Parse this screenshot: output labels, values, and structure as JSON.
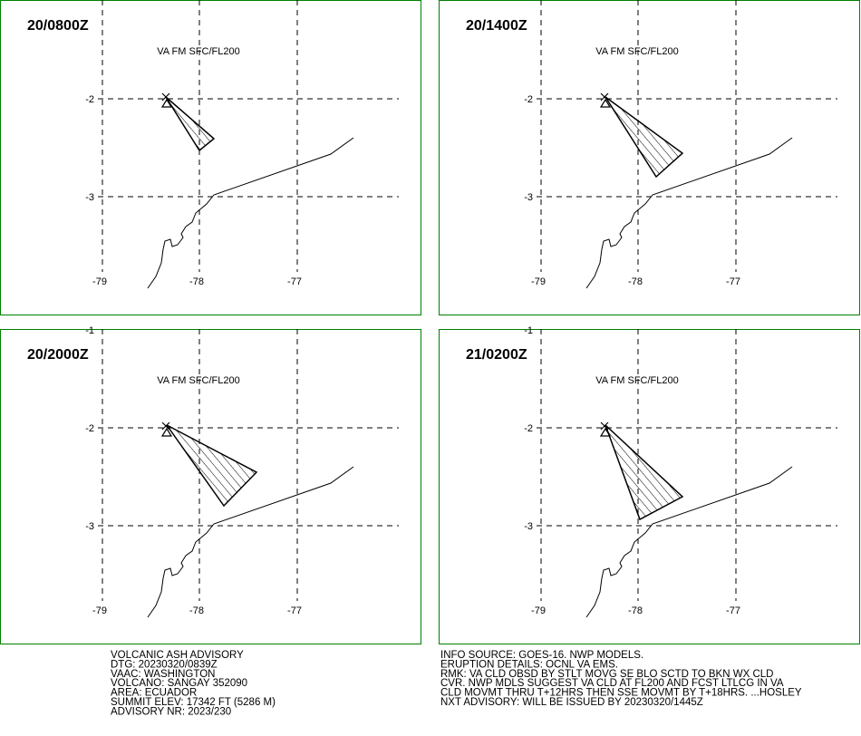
{
  "panels": [
    {
      "time": "20/0800Z",
      "level": "VA FM SFC/FL200",
      "lat_labels": [
        "-2",
        "-3"
      ],
      "lon_labels": [
        "-79",
        "-78",
        "-77"
      ]
    },
    {
      "time": "20/1400Z",
      "level": "VA FM SFC/FL200",
      "lat_labels": [
        "-2",
        "-3"
      ],
      "lon_labels": [
        "-79",
        "-78",
        "-77"
      ]
    },
    {
      "time": "20/2000Z",
      "level": "VA FM SFC/FL200",
      "lat_labels": [
        "-1",
        "-2",
        "-3"
      ],
      "lon_labels": [
        "-79",
        "-78",
        "-77"
      ]
    },
    {
      "time": "21/0200Z",
      "level": "VA FM SFC/FL200",
      "lat_labels": [
        "-1",
        "-2",
        "-3"
      ],
      "lon_labels": [
        "-79",
        "-78",
        "-77"
      ]
    }
  ],
  "footer": {
    "left": [
      "VOLCANIC ASH ADVISORY",
      "DTG: 20230320/0839Z",
      "VAAC: WASHINGTON",
      "VOLCANO: SANGAY 352090",
      "AREA: ECUADOR",
      "SUMMIT ELEV: 17342 FT (5286 M)",
      "ADVISORY NR: 2023/230"
    ],
    "right": [
      "INFO SOURCE: GOES-16. NWP MODELS.",
      "ERUPTION DETAILS: OCNL VA EMS.",
      "RMK: VA CLD OBSD BY STLT MOVG SE BLO SCTD TO BKN WX CLD",
      "CVR. NWP MDLS SUGGEST VA CLD AT FL200 AND FCST LTLCG IN VA",
      "CLD MOVMT THRU T+12HRS THEN SSE MOVMT BY T+18HRS. ...HOSLEY",
      "NXT ADVISORY: WILL BE ISSUED BY 20230320/1445Z"
    ]
  }
}
